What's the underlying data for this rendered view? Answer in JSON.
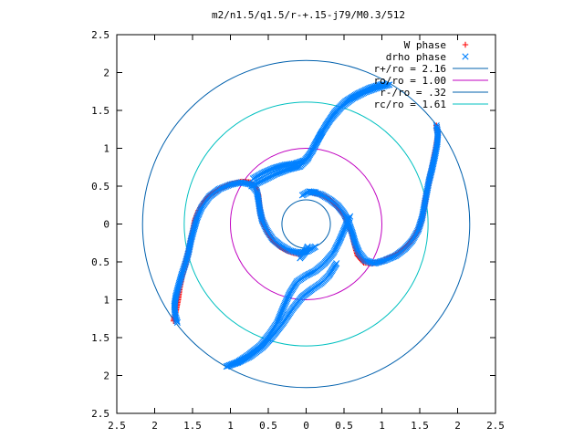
{
  "chart_data": {
    "type": "scatter",
    "title": "m2/n1.5/q1.5/r-+.15-j79/M0.3/512",
    "xlabel": "",
    "ylabel": "",
    "xlim": [
      -2.5,
      2.5
    ],
    "ylim": [
      -2.5,
      2.5
    ],
    "x_ticks": [
      "2.5",
      "2",
      "1.5",
      "1",
      "0.5",
      "0",
      "0.5",
      "1",
      "1.5",
      "2",
      "2.5"
    ],
    "y_ticks": [
      "2.5",
      "2",
      "1.5",
      "1",
      "0.5",
      "0",
      "0.5",
      "1",
      "1.5",
      "2",
      "2.5"
    ],
    "grid": false,
    "legend_position": "top-right",
    "series": [
      {
        "name": "W phase",
        "kind": "points",
        "marker": "plus",
        "color": "#ff0000",
        "arms": [
          [
            [
              -1.75,
              -1.28
            ],
            [
              -1.72,
              -1.15
            ],
            [
              -1.69,
              -1.0
            ],
            [
              -1.67,
              -0.85
            ],
            [
              -1.64,
              -0.7
            ],
            [
              -1.6,
              -0.55
            ],
            [
              -1.56,
              -0.4
            ],
            [
              -1.53,
              -0.25
            ],
            [
              -1.5,
              -0.1
            ],
            [
              -1.47,
              0.05
            ],
            [
              -1.42,
              0.18
            ],
            [
              -1.35,
              0.3
            ],
            [
              -1.25,
              0.4
            ],
            [
              -1.12,
              0.48
            ],
            [
              -0.98,
              0.53
            ],
            [
              -0.85,
              0.56
            ],
            [
              -0.74,
              0.55
            ],
            [
              -0.66,
              0.48
            ],
            [
              -0.63,
              0.38
            ],
            [
              -0.62,
              0.26
            ],
            [
              -0.6,
              0.12
            ],
            [
              -0.56,
              0.0
            ],
            [
              -0.5,
              -0.13
            ],
            [
              -0.43,
              -0.23
            ],
            [
              -0.35,
              -0.3
            ],
            [
              -0.26,
              -0.35
            ],
            [
              -0.17,
              -0.38
            ],
            [
              -0.08,
              -0.4
            ]
          ],
          [
            [
              0.06,
              0.42
            ],
            [
              0.16,
              0.4
            ],
            [
              0.25,
              0.36
            ],
            [
              0.34,
              0.3
            ],
            [
              0.42,
              0.22
            ],
            [
              0.49,
              0.13
            ],
            [
              0.54,
              0.02
            ],
            [
              0.6,
              -0.12
            ],
            [
              0.64,
              -0.28
            ],
            [
              0.68,
              -0.42
            ],
            [
              0.76,
              -0.51
            ],
            [
              0.88,
              -0.52
            ],
            [
              1.0,
              -0.49
            ],
            [
              1.13,
              -0.43
            ],
            [
              1.25,
              -0.36
            ],
            [
              1.36,
              -0.26
            ],
            [
              1.45,
              -0.14
            ],
            [
              1.51,
              0.0
            ],
            [
              1.55,
              0.15
            ],
            [
              1.57,
              0.3
            ],
            [
              1.6,
              0.45
            ],
            [
              1.63,
              0.6
            ],
            [
              1.66,
              0.75
            ],
            [
              1.69,
              0.9
            ],
            [
              1.72,
              1.05
            ],
            [
              1.74,
              1.18
            ],
            [
              1.72,
              1.3
            ]
          ]
        ]
      },
      {
        "name": "drho phase",
        "kind": "points",
        "marker": "cross",
        "color": "#0080ff",
        "arms": [
          [
            [
              -1.7,
              -1.3
            ],
            [
              -1.73,
              -1.2
            ],
            [
              -1.74,
              -1.08
            ],
            [
              -1.72,
              -0.95
            ],
            [
              -1.68,
              -0.8
            ],
            [
              -1.64,
              -0.66
            ],
            [
              -1.59,
              -0.51
            ],
            [
              -1.55,
              -0.36
            ],
            [
              -1.52,
              -0.21
            ],
            [
              -1.48,
              -0.06
            ],
            [
              -1.44,
              0.08
            ],
            [
              -1.38,
              0.22
            ],
            [
              -1.28,
              0.36
            ],
            [
              -1.15,
              0.46
            ],
            [
              -1.0,
              0.52
            ],
            [
              -0.86,
              0.55
            ],
            [
              -0.72,
              0.52
            ],
            [
              -0.65,
              0.43
            ],
            [
              -0.63,
              0.32
            ],
            [
              -0.61,
              0.18
            ],
            [
              -0.58,
              0.05
            ],
            [
              -0.52,
              -0.08
            ],
            [
              -0.44,
              -0.2
            ],
            [
              -0.34,
              -0.28
            ],
            [
              -0.22,
              -0.35
            ],
            [
              -0.1,
              -0.38
            ],
            [
              0.02,
              -0.36
            ],
            [
              0.12,
              -0.3
            ]
          ],
          [
            [
              0.08,
              0.42
            ],
            [
              0.2,
              0.39
            ],
            [
              0.32,
              0.32
            ],
            [
              0.42,
              0.24
            ],
            [
              0.5,
              0.14
            ],
            [
              0.56,
              0.02
            ],
            [
              0.61,
              -0.12
            ],
            [
              0.65,
              -0.26
            ],
            [
              0.7,
              -0.38
            ],
            [
              0.78,
              -0.48
            ],
            [
              0.9,
              -0.52
            ],
            [
              1.04,
              -0.48
            ],
            [
              1.18,
              -0.42
            ],
            [
              1.3,
              -0.33
            ],
            [
              1.4,
              -0.22
            ],
            [
              1.48,
              -0.08
            ],
            [
              1.53,
              0.08
            ],
            [
              1.56,
              0.24
            ],
            [
              1.59,
              0.4
            ],
            [
              1.62,
              0.56
            ],
            [
              1.66,
              0.72
            ],
            [
              1.7,
              0.9
            ],
            [
              1.73,
              1.06
            ],
            [
              1.74,
              1.2
            ],
            [
              1.72,
              1.3
            ]
          ],
          [
            [
              -1.05,
              -1.88
            ],
            [
              -0.9,
              -1.82
            ],
            [
              -0.75,
              -1.72
            ],
            [
              -0.6,
              -1.6
            ],
            [
              -0.48,
              -1.45
            ],
            [
              -0.38,
              -1.3
            ],
            [
              -0.3,
              -1.1
            ],
            [
              -0.22,
              -0.92
            ],
            [
              -0.12,
              -0.76
            ],
            [
              0.0,
              -0.68
            ],
            [
              0.12,
              -0.62
            ],
            [
              0.24,
              -0.52
            ],
            [
              0.36,
              -0.38
            ],
            [
              0.44,
              -0.22
            ],
            [
              0.5,
              -0.08
            ],
            [
              0.55,
              0.04
            ],
            [
              0.58,
              0.1
            ]
          ],
          [
            [
              -0.7,
              0.6
            ],
            [
              -0.56,
              0.68
            ],
            [
              -0.42,
              0.74
            ],
            [
              -0.28,
              0.78
            ],
            [
              -0.14,
              0.8
            ],
            [
              -0.02,
              0.84
            ],
            [
              0.08,
              0.96
            ],
            [
              0.16,
              1.12
            ],
            [
              0.26,
              1.3
            ],
            [
              0.38,
              1.48
            ],
            [
              0.52,
              1.62
            ],
            [
              0.68,
              1.72
            ],
            [
              0.85,
              1.8
            ],
            [
              1.02,
              1.85
            ]
          ],
          [
            [
              -1.05,
              -1.88
            ],
            [
              -0.9,
              -1.83
            ],
            [
              -0.74,
              -1.75
            ],
            [
              -0.58,
              -1.63
            ],
            [
              -0.44,
              -1.48
            ],
            [
              -0.3,
              -1.3
            ],
            [
              -0.18,
              -1.12
            ],
            [
              -0.05,
              -0.96
            ],
            [
              0.08,
              -0.86
            ],
            [
              0.2,
              -0.78
            ],
            [
              0.3,
              -0.68
            ],
            [
              0.4,
              -0.52
            ]
          ],
          [
            [
              -0.72,
              0.5
            ],
            [
              -0.56,
              0.58
            ],
            [
              -0.4,
              0.66
            ],
            [
              -0.24,
              0.72
            ],
            [
              -0.08,
              0.76
            ],
            [
              0.02,
              0.86
            ],
            [
              0.1,
              1.02
            ],
            [
              0.2,
              1.2
            ],
            [
              0.32,
              1.38
            ],
            [
              0.46,
              1.54
            ],
            [
              0.62,
              1.66
            ],
            [
              0.78,
              1.74
            ],
            [
              0.95,
              1.8
            ],
            [
              1.1,
              1.84
            ]
          ],
          [
            [
              -0.08,
              -0.45
            ],
            [
              -0.02,
              -0.38
            ],
            [
              0.02,
              -0.3
            ]
          ],
          [
            [
              -0.05,
              0.38
            ],
            [
              0.04,
              0.43
            ],
            [
              0.12,
              0.42
            ]
          ]
        ]
      },
      {
        "name": "r+/ro = 2.16",
        "kind": "circle",
        "r": 2.16,
        "color": "#0060ad"
      },
      {
        "name": "ro/ro = 1.00",
        "kind": "circle",
        "r": 1.0,
        "color": "#c000c0"
      },
      {
        "name": "r-/ro = .32",
        "kind": "circle",
        "r": 0.32,
        "color": "#0060ad"
      },
      {
        "name": "rc/ro = 1.61",
        "kind": "circle",
        "r": 1.61,
        "color": "#00c0c0"
      }
    ]
  }
}
